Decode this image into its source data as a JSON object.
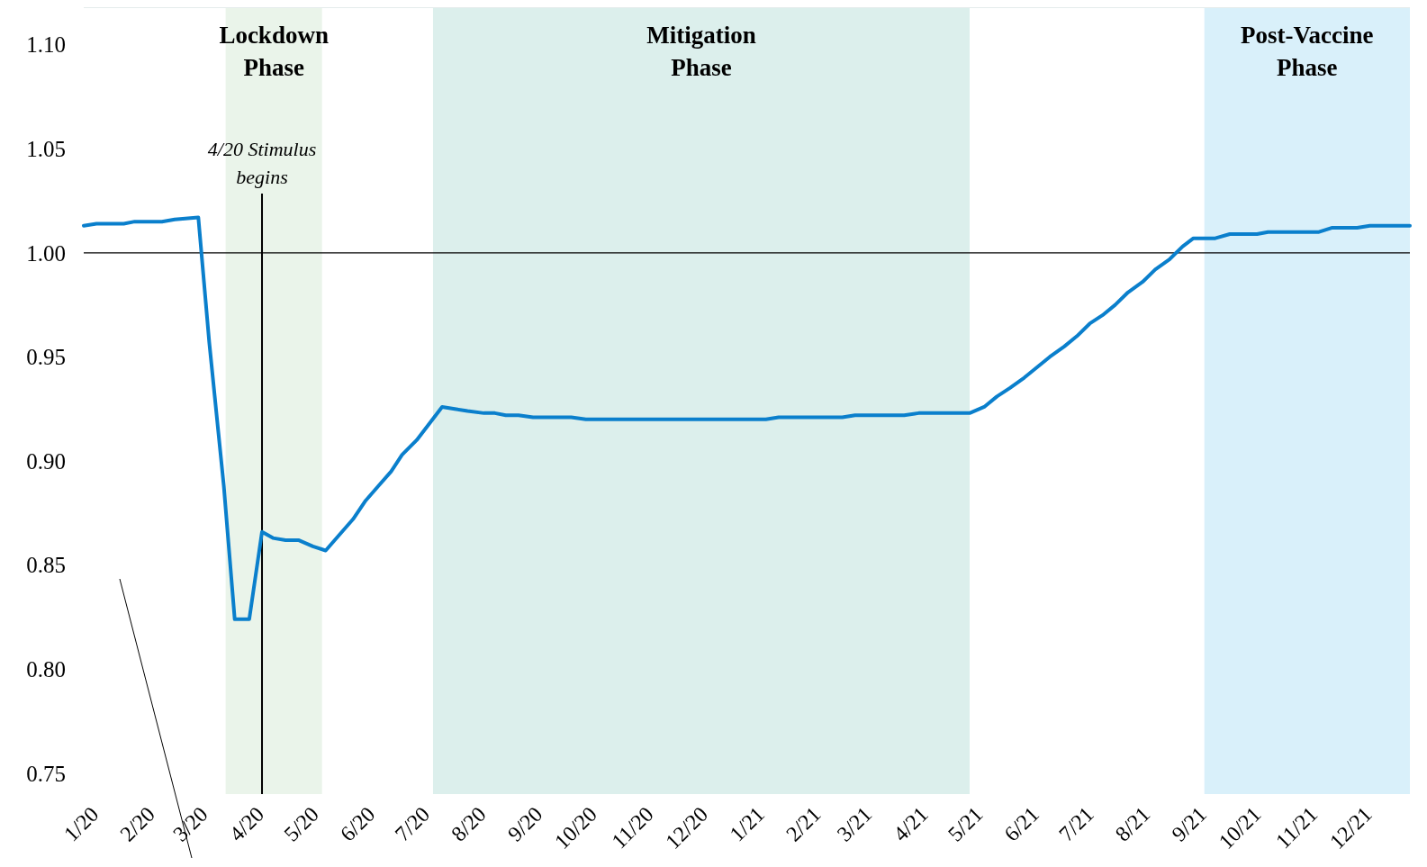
{
  "chart_data": {
    "type": "line",
    "x": [
      "2020-01-01",
      "2020-01-08",
      "2020-01-23",
      "2020-01-29",
      "2020-02-13",
      "2020-02-20",
      "2020-03-04",
      "2020-03-10",
      "2020-03-18",
      "2020-03-24",
      "2020-04-01",
      "2020-04-08",
      "2020-04-14",
      "2020-04-21",
      "2020-04-28",
      "2020-05-06",
      "2020-05-13",
      "2020-05-20",
      "2020-05-28",
      "2020-06-04",
      "2020-06-11",
      "2020-06-18",
      "2020-06-24",
      "2020-07-02",
      "2020-07-09",
      "2020-07-16",
      "2020-07-23",
      "2020-07-30",
      "2020-08-08",
      "2020-08-14",
      "2020-08-20",
      "2020-08-27",
      "2020-09-04",
      "2020-09-25",
      "2020-10-03",
      "2021-01-10",
      "2021-01-17",
      "2021-02-21",
      "2021-02-28",
      "2021-03-27",
      "2021-04-04",
      "2021-05-02",
      "2021-05-10",
      "2021-05-17",
      "2021-05-24",
      "2021-06-01",
      "2021-06-08",
      "2021-06-15",
      "2021-06-23",
      "2021-06-30",
      "2021-07-07",
      "2021-07-14",
      "2021-07-21",
      "2021-07-28",
      "2021-08-05",
      "2021-08-12",
      "2021-08-20",
      "2021-08-27",
      "2021-09-02",
      "2021-09-14",
      "2021-09-22",
      "2021-09-29",
      "2021-10-07",
      "2021-10-13",
      "2021-11-10",
      "2021-11-17",
      "2021-12-01",
      "2021-12-08",
      "2021-12-30"
    ],
    "series": [
      {
        "color": "#0a7fcc",
        "values": [
          1.013,
          1.014,
          1.014,
          1.015,
          1.015,
          1.016,
          1.017,
          0.957,
          0.888,
          0.824,
          0.824,
          0.866,
          0.863,
          0.862,
          0.862,
          0.859,
          0.857,
          0.864,
          0.872,
          0.881,
          0.888,
          0.895,
          0.903,
          0.91,
          0.918,
          0.926,
          0.925,
          0.924,
          0.923,
          0.923,
          0.922,
          0.922,
          0.921,
          0.921,
          0.92,
          0.92,
          0.921,
          0.921,
          0.922,
          0.922,
          0.923,
          0.923,
          0.926,
          0.931,
          0.935,
          0.94,
          0.945,
          0.95,
          0.955,
          0.96,
          0.966,
          0.97,
          0.975,
          0.981,
          0.986,
          0.992,
          0.997,
          1.003,
          1.007,
          1.007,
          1.009,
          1.009,
          1.009,
          1.01,
          1.01,
          1.012,
          1.012,
          1.013,
          1.013
        ]
      }
    ],
    "xlim": [
      "2020-01-01",
      "2021-12-30"
    ],
    "xticks": [
      {
        "value": "2020-01",
        "label": "1/20"
      },
      {
        "value": "2020-02",
        "label": "2/20"
      },
      {
        "value": "2020-03",
        "label": "3/20"
      },
      {
        "value": "2020-04",
        "label": "4/20"
      },
      {
        "value": "2020-05",
        "label": "5/20"
      },
      {
        "value": "2020-06",
        "label": "6/20"
      },
      {
        "value": "2020-07",
        "label": "7/20"
      },
      {
        "value": "2020-08",
        "label": "8/20"
      },
      {
        "value": "2020-09",
        "label": "9/20"
      },
      {
        "value": "2020-10",
        "label": "10/20"
      },
      {
        "value": "2020-11",
        "label": "11/20"
      },
      {
        "value": "2020-12",
        "label": "12/20"
      },
      {
        "value": "2021-01",
        "label": "1/21"
      },
      {
        "value": "2021-02",
        "label": "2/21"
      },
      {
        "value": "2021-03",
        "label": "3/21"
      },
      {
        "value": "2021-04",
        "label": "4/21"
      },
      {
        "value": "2021-05",
        "label": "5/21"
      },
      {
        "value": "2021-06",
        "label": "6/21"
      },
      {
        "value": "2021-07",
        "label": "7/21"
      },
      {
        "value": "2021-08",
        "label": "8/21"
      },
      {
        "value": "2021-09",
        "label": "9/21"
      },
      {
        "value": "2021-10",
        "label": "10/21"
      },
      {
        "value": "2021-11",
        "label": "11/21"
      },
      {
        "value": "2021-12",
        "label": "12/21"
      }
    ],
    "ylim": [
      0.74,
      1.118
    ],
    "yticks": [
      {
        "value": 0.75,
        "label": "0.75"
      },
      {
        "value": 0.8,
        "label": "0.80"
      },
      {
        "value": 0.85,
        "label": "0.85"
      },
      {
        "value": 0.9,
        "label": "0.90"
      },
      {
        "value": 0.95,
        "label": "0.95"
      },
      {
        "value": 1.0,
        "label": "1.00"
      },
      {
        "value": 1.05,
        "label": "1.05"
      },
      {
        "value": 1.1,
        "label": "1.10"
      }
    ],
    "grid": false,
    "ref_lines": [
      {
        "axis": "y",
        "value": 1.0,
        "color": "#000000"
      },
      {
        "axis": "x",
        "value": "2020-04-08",
        "label": "4/20 Stimulus begins",
        "color": "#000000"
      }
    ],
    "bands": [
      {
        "axis": "x",
        "from": "2020-03-19",
        "to": "2020-05-11",
        "label": "Lockdown Phase",
        "color": "#eaf4ea"
      },
      {
        "axis": "x",
        "from": "2020-07-11",
        "to": "2021-05-02",
        "label": "Mitigation Phase",
        "color": "#dcefec"
      },
      {
        "axis": "x",
        "from": "2021-09-08",
        "to": "2021-12-30",
        "label": "Post-Vaccine Phase",
        "color": "#d9f0fa"
      }
    ]
  }
}
